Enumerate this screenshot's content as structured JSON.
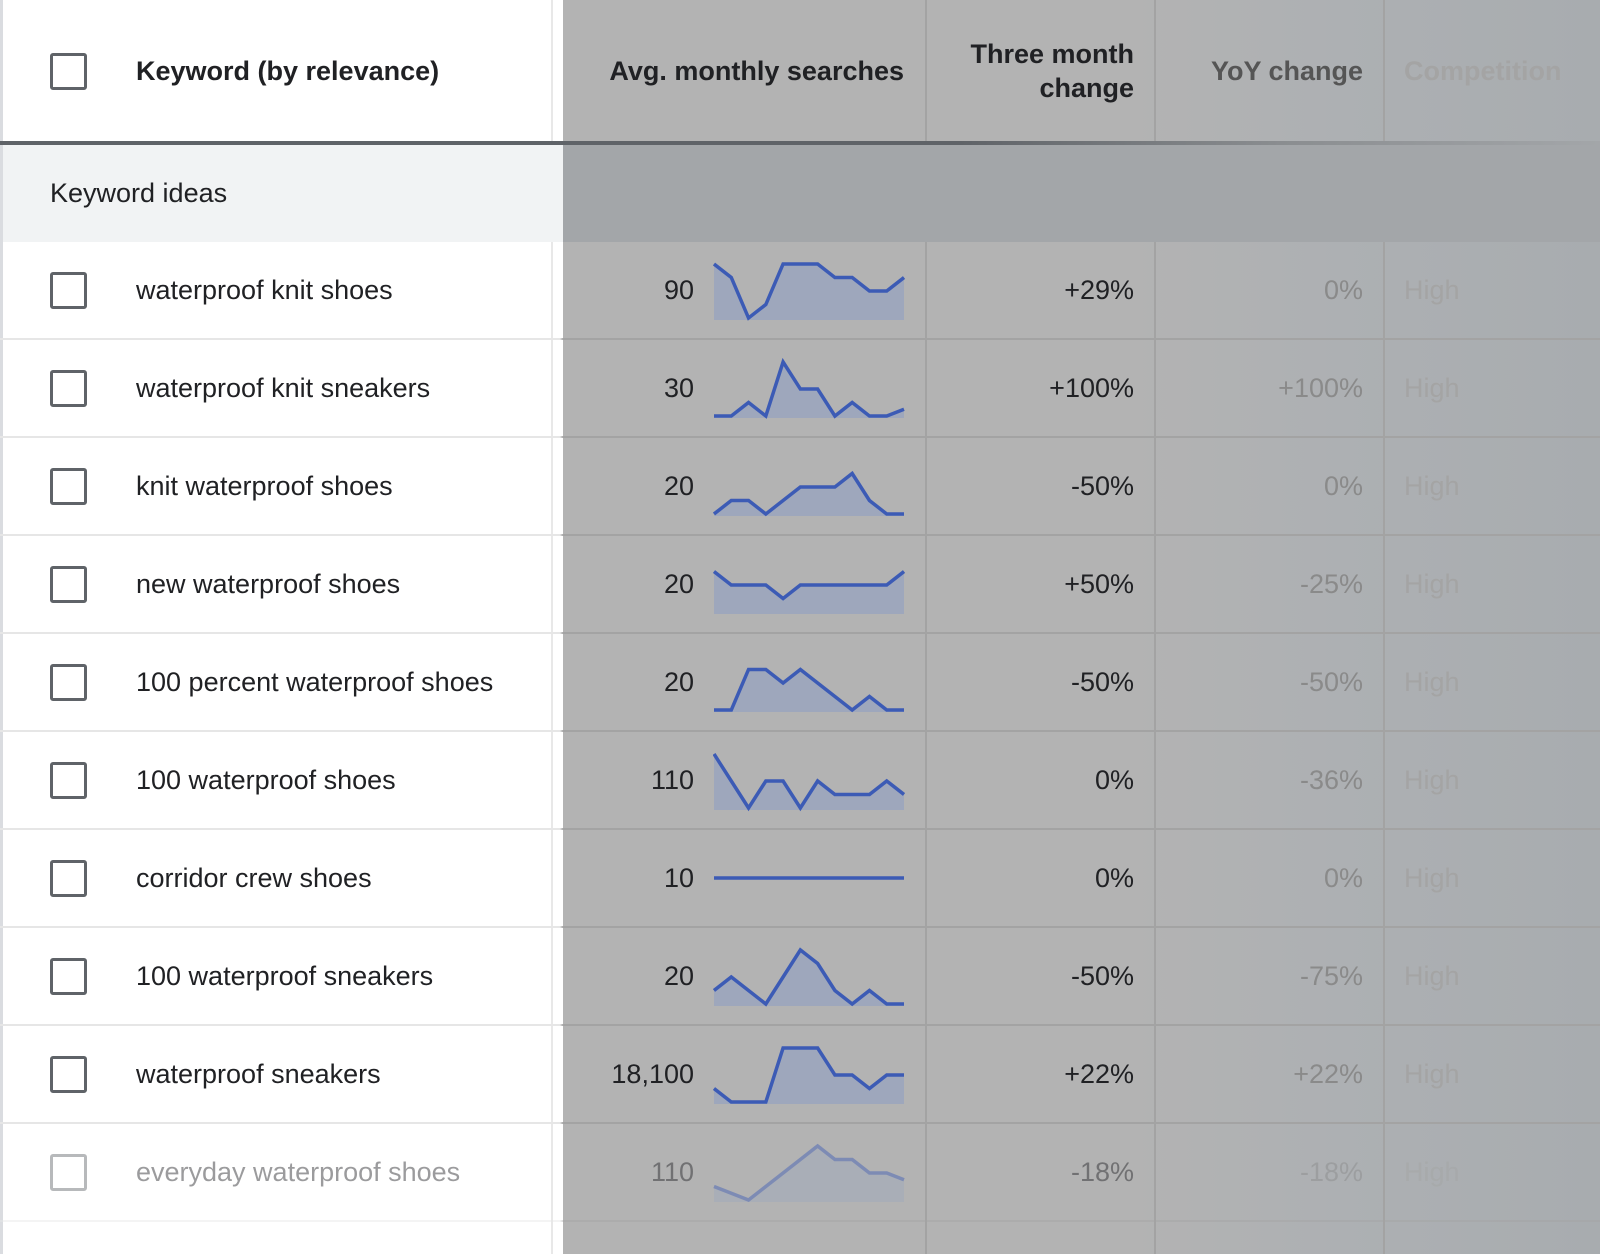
{
  "header": {
    "keyword_col": "Keyword (by relevance)",
    "avg_col": "Avg. monthly searches",
    "three_month_col_line1": "Three month",
    "three_month_col_line2": "change",
    "yoy_col": "YoY change",
    "competition_col": "Competition"
  },
  "group": {
    "label": "Keyword ideas"
  },
  "rows": [
    {
      "keyword": "waterproof knit shoes",
      "avg": "90",
      "three_month": "+29%",
      "yoy": "0%",
      "competition": "High",
      "trend": [
        5,
        4,
        1,
        2,
        5,
        5,
        5,
        4,
        4,
        3,
        3,
        4
      ]
    },
    {
      "keyword": "waterproof knit sneakers",
      "avg": "30",
      "three_month": "+100%",
      "yoy": "+100%",
      "competition": "High",
      "trend": [
        1,
        1,
        2,
        1,
        5,
        3,
        3,
        1,
        2,
        1,
        1,
        1.5
      ]
    },
    {
      "keyword": "knit waterproof shoes",
      "avg": "20",
      "three_month": "-50%",
      "yoy": "0%",
      "competition": "High",
      "trend": [
        1,
        2,
        2,
        1,
        2,
        3,
        3,
        3,
        4,
        2,
        1,
        1
      ]
    },
    {
      "keyword": "new waterproof shoes",
      "avg": "20",
      "three_month": "+50%",
      "yoy": "-25%",
      "competition": "High",
      "trend": [
        4,
        3,
        3,
        3,
        2,
        3,
        3,
        3,
        3,
        3,
        3,
        4
      ]
    },
    {
      "keyword": "100 percent waterproof shoes",
      "avg": "20",
      "three_month": "-50%",
      "yoy": "-50%",
      "competition": "High",
      "trend": [
        1,
        1,
        4,
        4,
        3,
        4,
        3,
        2,
        1,
        2,
        1,
        1
      ]
    },
    {
      "keyword": "100 waterproof shoes",
      "avg": "110",
      "three_month": "0%",
      "yoy": "-36%",
      "competition": "High",
      "trend": [
        5,
        3,
        1,
        3,
        3,
        1,
        3,
        2,
        2,
        2,
        3,
        2
      ]
    },
    {
      "keyword": "corridor crew shoes",
      "avg": "10",
      "three_month": "0%",
      "yoy": "0%",
      "competition": "High",
      "trend": [
        2,
        2,
        2,
        2,
        2,
        2,
        2,
        2,
        2,
        2,
        2,
        2
      ]
    },
    {
      "keyword": "100 waterproof sneakers",
      "avg": "20",
      "three_month": "-50%",
      "yoy": "-75%",
      "competition": "High",
      "trend": [
        2,
        3,
        2,
        1,
        3,
        5,
        4,
        2,
        1,
        2,
        1,
        1
      ]
    },
    {
      "keyword": "waterproof sneakers",
      "avg": "18,100",
      "three_month": "+22%",
      "yoy": "+22%",
      "competition": "High",
      "trend": [
        2,
        1,
        1,
        1,
        5,
        5,
        5,
        3,
        3,
        2,
        3,
        3
      ]
    },
    {
      "keyword": "everyday waterproof shoes",
      "avg": "110",
      "three_month": "-18%",
      "yoy": "-18%",
      "competition": "High",
      "trend": [
        2,
        1.5,
        1,
        2,
        3,
        4,
        5,
        4,
        4,
        3,
        3,
        2.5
      ]
    }
  ],
  "colors": {
    "spark_line": "#3c5bb5",
    "spark_fill": "#9ea7bc"
  }
}
